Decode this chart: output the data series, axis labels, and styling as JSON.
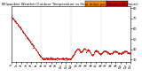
{
  "title": "Milwaukee Weather Outdoor Temperature vs Heat Index per Minute (24 Hours)",
  "bg_color": "#ffffff",
  "plot_bg": "#ffffff",
  "dot_color": "#cc0000",
  "legend_color_orange": "#ff8800",
  "legend_color_red": "#cc0000",
  "grid_color": "#bbbbbb",
  "ylim": [
    28,
    82
  ],
  "yticks": [
    30,
    40,
    50,
    60,
    70,
    80
  ],
  "title_fontsize": 2.8,
  "tick_fontsize": 2.5,
  "n_points": 1440,
  "vlines": [
    360,
    720,
    1080
  ],
  "x_tick_positions": [
    0,
    60,
    120,
    180,
    240,
    300,
    360,
    420,
    480,
    540,
    600,
    660,
    720,
    780,
    840,
    900,
    960,
    1020,
    1080,
    1140,
    1200,
    1260,
    1320,
    1380,
    1439
  ],
  "x_tick_labels": [
    "ft",
    "1a",
    "2a",
    "3a",
    "4a",
    "5a",
    "6a",
    "7a",
    "8a",
    "9a",
    "10a",
    "11a",
    "12p",
    "1p",
    "2p",
    "3p",
    "4p",
    "5p",
    "6p",
    "7p",
    "8p",
    "9p",
    "10p",
    "11p",
    "12a"
  ]
}
